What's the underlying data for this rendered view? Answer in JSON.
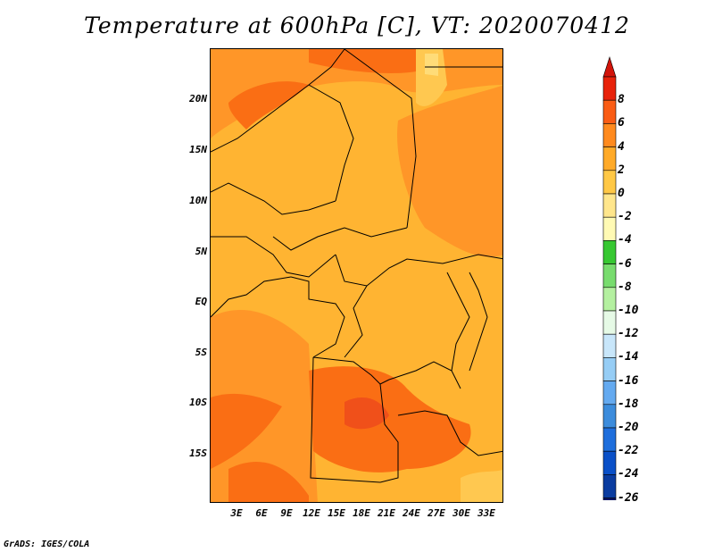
{
  "title": "Temperature at 600hPa [C], VT: 2020070412",
  "credit": "GrADS: IGES/COLA",
  "lat_labels": [
    "20N",
    "15N",
    "10N",
    "5N",
    "EQ",
    "5S",
    "10S",
    "15S"
  ],
  "lon_labels": [
    "3E",
    "6E",
    "9E",
    "12E",
    "15E",
    "18E",
    "21E",
    "24E",
    "27E",
    "30E",
    "33E"
  ],
  "colorbar": {
    "labels": [
      "8",
      "6",
      "4",
      "2",
      "0",
      "-2",
      "-4",
      "-6",
      "-8",
      "-10",
      "-12",
      "-14",
      "-16",
      "-18",
      "-20",
      "-22",
      "-24",
      "-26"
    ],
    "colors": [
      "#e8220a",
      "#fa5c14",
      "#ff8a1e",
      "#ffaa28",
      "#ffc846",
      "#ffe68c",
      "#fffab4",
      "#37c832",
      "#78dc6e",
      "#b4f0a0",
      "#e6fae6",
      "#c8e6fa",
      "#96cdf5",
      "#64aaf0",
      "#3c8cdc",
      "#1e6edc",
      "#0a50c8",
      "#0a3ca0",
      "#0a1464"
    ],
    "top_triangle_color": "#d2140a",
    "bottom_triangle_color": "#dcdcf5"
  },
  "field_colors": {
    "base": "#ffb432",
    "warm": "#ff9628",
    "hot": "#fa6e14",
    "hotter": "#f0501a",
    "cool": "#ffc850",
    "cooler": "#ffdc78"
  }
}
